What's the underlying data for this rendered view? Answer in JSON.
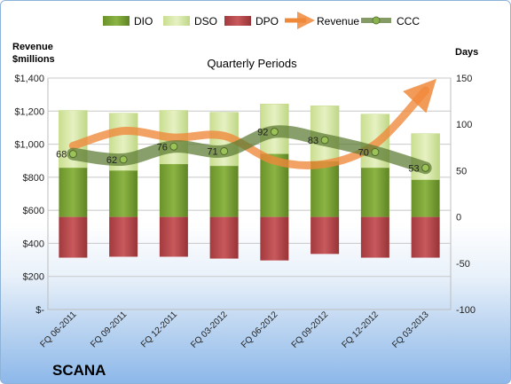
{
  "company": "SCANA",
  "left_axis_title": [
    "Revenue",
    "$millions"
  ],
  "right_axis_title": "Days",
  "chart_data": {
    "type": "bar",
    "title": "Quarterly Periods",
    "categories": [
      "FQ 06-2011",
      "FQ 09-2011",
      "FQ 12-2011",
      "FQ 03-2012",
      "FQ 06-2012",
      "FQ 09-2012",
      "FQ 12-2012",
      "FQ 03-2013"
    ],
    "legend": [
      "DIO",
      "DSO",
      "DPO",
      "Revenue",
      "CCC"
    ],
    "legend_position": "top",
    "y_left": {
      "label": "Revenue $millions",
      "ticks": [
        "$-",
        "$200",
        "$400",
        "$600",
        "$800",
        "$1,000",
        "$1,200",
        "$1,400"
      ],
      "lim": [
        0,
        1400
      ]
    },
    "y_right": {
      "label": "Days",
      "ticks": [
        "-100",
        "-50",
        "0",
        "50",
        "100",
        "150"
      ],
      "lim": [
        -100,
        150
      ]
    },
    "series": [
      {
        "name": "DIO",
        "axis": "right",
        "color": "#77a033",
        "values": [
          53,
          50,
          57,
          55,
          68,
          60,
          53,
          40
        ]
      },
      {
        "name": "DSO",
        "axis": "right",
        "color": "#d6e8a3",
        "values": [
          62,
          62,
          58,
          58,
          54,
          60,
          58,
          50
        ]
      },
      {
        "name": "DPO",
        "axis": "right",
        "color": "#b8484c",
        "values": [
          -44,
          -43,
          -43,
          -45,
          -47,
          -40,
          -44,
          -44
        ]
      },
      {
        "name": "Revenue",
        "axis": "left",
        "color": "#f0883a",
        "values": [
          990,
          1080,
          1040,
          1050,
          900,
          880,
          1000,
          1325
        ]
      },
      {
        "name": "CCC",
        "axis": "right",
        "color": "#5b7a32",
        "values": [
          68,
          62,
          76,
          71,
          92,
          83,
          70,
          53
        ],
        "labels": [
          "68",
          "62",
          "76",
          "71",
          "92",
          "83",
          "70",
          "53"
        ]
      }
    ],
    "grid": true
  }
}
